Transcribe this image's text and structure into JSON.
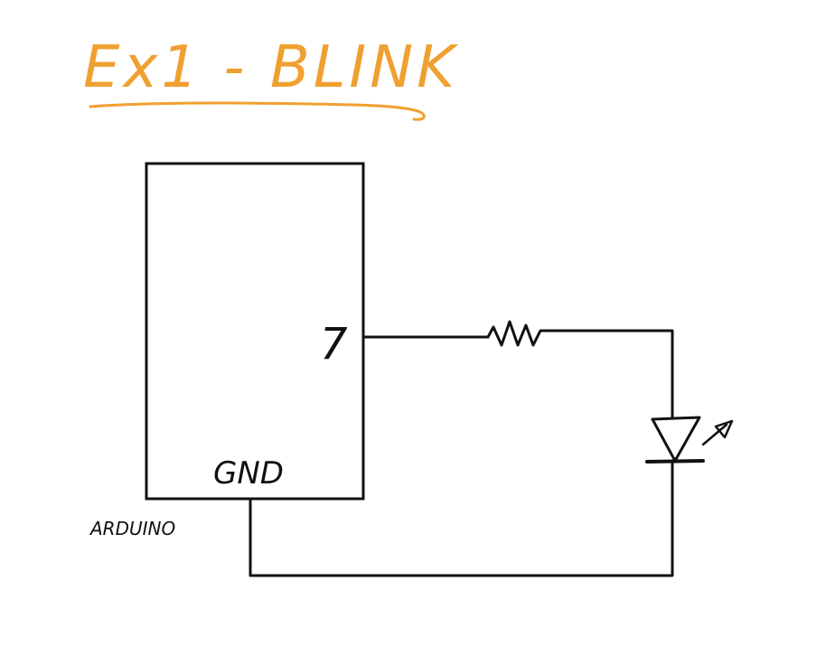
{
  "title": {
    "text": "Ex1 - BLINK",
    "color": "#F0A030"
  },
  "board": {
    "name": "ARDUINO",
    "pin_label": "7",
    "ground_label": "GND"
  },
  "components": [
    {
      "type": "resistor",
      "name": "resistor"
    },
    {
      "type": "led",
      "name": "led"
    }
  ],
  "colors": {
    "ink": "#111111",
    "accent": "#F0A030"
  }
}
